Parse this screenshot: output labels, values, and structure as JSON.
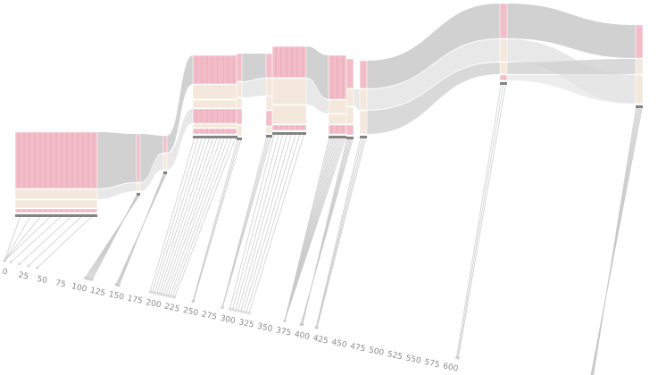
{
  "chart_data": {
    "type": "alluvial",
    "title": "",
    "x_axis": {
      "min": 0,
      "max": 800,
      "ticks": [
        0,
        25,
        50,
        75,
        100,
        125,
        150,
        175,
        200,
        225,
        250,
        275,
        300,
        325,
        350,
        375,
        400,
        425,
        450,
        475,
        500,
        525,
        550,
        575,
        600
      ],
      "tick_labels": [
        "0",
        "25",
        "50",
        "75",
        "100",
        "125",
        "150",
        "175",
        "200",
        "225",
        "250",
        "275",
        "300",
        "325",
        "350",
        "375",
        "400",
        "425",
        "450",
        "475",
        "500",
        "525",
        "550",
        "575",
        "600"
      ]
    },
    "grid": false,
    "legend": "none",
    "colors": {
      "band_pink": "#f2bcc8",
      "band_pink_stripe": "#e7a1b1",
      "band_cream": "#f4e8dc",
      "band_grey": "#cfcfcf",
      "band_light_grey": "#e6e6e6",
      "node_marker": "#6f6f6f",
      "leader_line": "#c9c9c9"
    }
  }
}
